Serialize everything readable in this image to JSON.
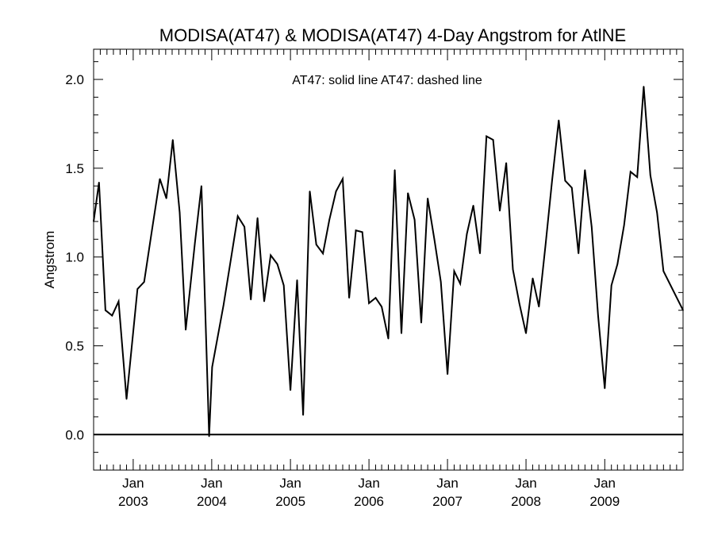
{
  "chart_data": {
    "type": "line",
    "title": "MODISA(AT47) & MODISA(AT47) 4-Day Angstrom for AtlNE",
    "ylabel": "Angstrom",
    "xlabel": "",
    "annotation": "AT47: solid line   AT47: dashed line",
    "ylim": [
      -0.2,
      2.17
    ],
    "y_ticks": [
      "0.0",
      "0.5",
      "1.0",
      "1.5",
      "2.0"
    ],
    "x_ticks": [
      {
        "month": "Jan",
        "year": "2003"
      },
      {
        "month": "Jan",
        "year": "2004"
      },
      {
        "month": "Jan",
        "year": "2005"
      },
      {
        "month": "Jan",
        "year": "2006"
      },
      {
        "month": "Jan",
        "year": "2007"
      },
      {
        "month": "Jan",
        "year": "2008"
      },
      {
        "month": "Jan",
        "year": "2009"
      }
    ],
    "xlim": [
      "2002-07-01",
      "2009-12-31"
    ],
    "reference_line": 0.0,
    "grid": false,
    "series": [
      {
        "name": "AT47",
        "style": "solid",
        "color": "#000000",
        "points": [
          [
            "2002-07-01",
            1.2
          ],
          [
            "2002-07-26",
            1.42
          ],
          [
            "2002-08-25",
            0.7
          ],
          [
            "2002-09-25",
            0.67
          ],
          [
            "2002-10-25",
            0.75
          ],
          [
            "2002-12-01",
            0.2
          ],
          [
            "2003-01-21",
            0.82
          ],
          [
            "2003-02-21",
            0.86
          ],
          [
            "2003-03-29",
            1.15
          ],
          [
            "2003-05-05",
            1.44
          ],
          [
            "2003-06-04",
            1.33
          ],
          [
            "2003-07-04",
            1.66
          ],
          [
            "2003-08-05",
            1.25
          ],
          [
            "2003-09-02",
            0.59
          ],
          [
            "2003-10-15",
            1.08
          ],
          [
            "2003-11-14",
            1.4
          ],
          [
            "2003-12-20",
            -0.01
          ],
          [
            "2004-01-03",
            0.38
          ],
          [
            "2004-02-25",
            0.73
          ],
          [
            "2004-04-01",
            1.0
          ],
          [
            "2004-05-01",
            1.23
          ],
          [
            "2004-06-01",
            1.17
          ],
          [
            "2004-07-01",
            0.76
          ],
          [
            "2004-08-01",
            1.22
          ],
          [
            "2004-09-01",
            0.75
          ],
          [
            "2004-10-01",
            1.01
          ],
          [
            "2004-11-01",
            0.96
          ],
          [
            "2004-12-01",
            0.84
          ],
          [
            "2005-01-01",
            0.25
          ],
          [
            "2005-02-01",
            0.87
          ],
          [
            "2005-03-01",
            0.11
          ],
          [
            "2005-04-01",
            1.37
          ],
          [
            "2005-05-01",
            1.07
          ],
          [
            "2005-06-01",
            1.02
          ],
          [
            "2005-07-01",
            1.21
          ],
          [
            "2005-08-01",
            1.37
          ],
          [
            "2005-09-01",
            1.44
          ],
          [
            "2005-10-01",
            0.77
          ],
          [
            "2005-11-01",
            1.15
          ],
          [
            "2005-12-01",
            1.14
          ],
          [
            "2006-01-01",
            0.74
          ],
          [
            "2006-02-01",
            0.77
          ],
          [
            "2006-03-01",
            0.72
          ],
          [
            "2006-04-01",
            0.54
          ],
          [
            "2006-05-01",
            1.49
          ],
          [
            "2006-06-01",
            0.57
          ],
          [
            "2006-07-01",
            1.36
          ],
          [
            "2006-08-01",
            1.21
          ],
          [
            "2006-09-01",
            0.63
          ],
          [
            "2006-10-01",
            1.33
          ],
          [
            "2006-11-01",
            1.1
          ],
          [
            "2006-12-01",
            0.86
          ],
          [
            "2007-01-01",
            0.34
          ],
          [
            "2007-02-01",
            0.92
          ],
          [
            "2007-03-01",
            0.85
          ],
          [
            "2007-04-01",
            1.13
          ],
          [
            "2007-05-01",
            1.29
          ],
          [
            "2007-06-01",
            1.02
          ],
          [
            "2007-07-01",
            1.68
          ],
          [
            "2007-08-01",
            1.66
          ],
          [
            "2007-09-01",
            1.26
          ],
          [
            "2007-10-01",
            1.53
          ],
          [
            "2007-11-01",
            0.93
          ],
          [
            "2007-12-01",
            0.74
          ],
          [
            "2008-01-01",
            0.57
          ],
          [
            "2008-02-01",
            0.88
          ],
          [
            "2008-03-01",
            0.72
          ],
          [
            "2008-04-01",
            1.07
          ],
          [
            "2008-05-01",
            1.43
          ],
          [
            "2008-06-01",
            1.77
          ],
          [
            "2008-07-01",
            1.43
          ],
          [
            "2008-08-01",
            1.39
          ],
          [
            "2008-09-01",
            1.02
          ],
          [
            "2008-10-01",
            1.49
          ],
          [
            "2008-11-01",
            1.17
          ],
          [
            "2008-12-01",
            0.67
          ],
          [
            "2009-01-01",
            0.26
          ],
          [
            "2009-02-01",
            0.84
          ],
          [
            "2009-03-01",
            0.96
          ],
          [
            "2009-04-01",
            1.18
          ],
          [
            "2009-05-01",
            1.48
          ],
          [
            "2009-06-01",
            1.45
          ],
          [
            "2009-07-01",
            1.96
          ],
          [
            "2009-08-01",
            1.46
          ],
          [
            "2009-09-01",
            1.25
          ],
          [
            "2009-10-01",
            0.92
          ],
          [
            "2009-12-31",
            0.7
          ]
        ]
      }
    ]
  }
}
